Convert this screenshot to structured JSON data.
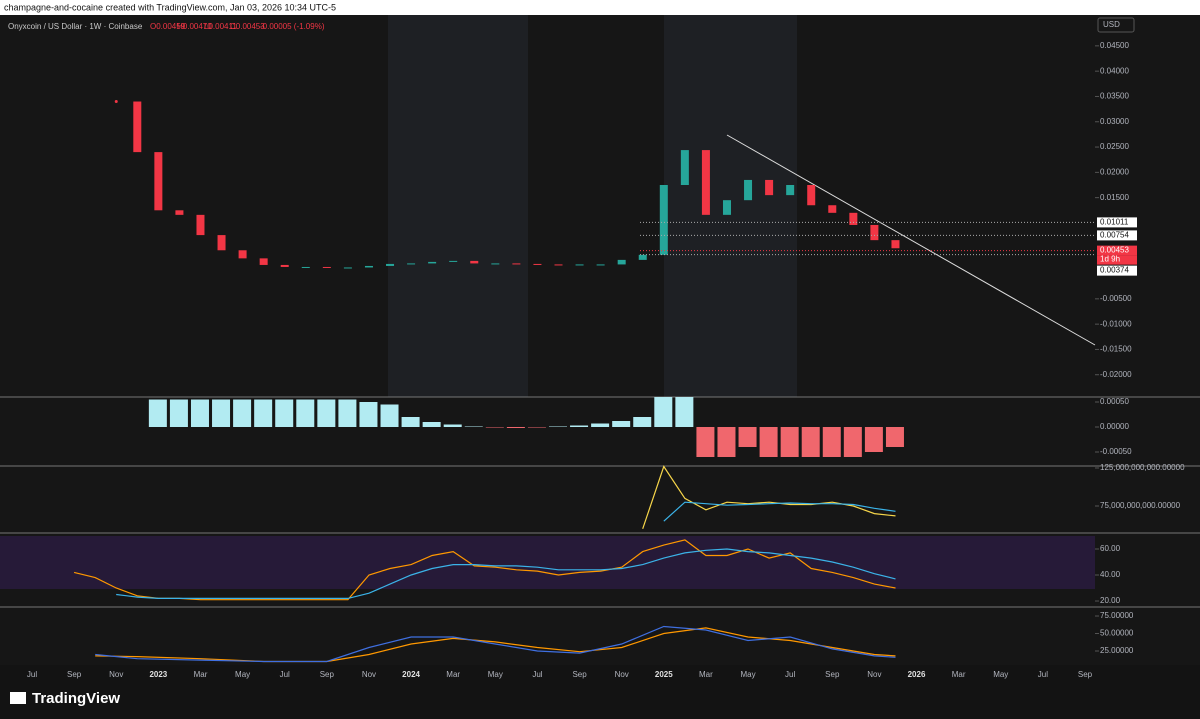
{
  "header": {
    "author_line": "champagne-and-cocaine created with TradingView.com, Jan 03, 2026 10:34 UTC-5",
    "symbol": "Onyxcoin / US Dollar · 1W · Coinbase",
    "open": "O0.00459",
    "high": "H0.00470",
    "low": "L0.00411",
    "close": "C0.00453",
    "change": "-0.00005 (-1.09%)",
    "currency": "USD"
  },
  "footer": {
    "brand": "TradingView"
  },
  "chart_data": [
    {
      "type": "line",
      "x": [
        "2022-11",
        "2022-12",
        "2023-01",
        "2023-02",
        "2023-03",
        "2023-04",
        "2023-05",
        "2023-06",
        "2023-07",
        "2023-08",
        "2023-09",
        "2023-10",
        "2023-11",
        "2023-12",
        "2024-01",
        "2024-02",
        "2024-03",
        "2024-04",
        "2024-05",
        "2024-06",
        "2024-07",
        "2024-08",
        "2024-09",
        "2024-10",
        "2024-11",
        "2024-12",
        "2025-01",
        "2025-02",
        "2025-03",
        "2025-04",
        "2025-05",
        "2025-06",
        "2025-07",
        "2025-08",
        "2025-09",
        "2025-10",
        "2025-11",
        "2025-12"
      ],
      "series": [
        {
          "up_color": "#26a69a",
          "down_color": "#f23645",
          "values": [
            0.034,
            0.024,
            0.0125,
            0.0116,
            0.0076,
            0.0046,
            0.003,
            0.0017,
            0.0013,
            0.0013,
            0.0012,
            0.0012,
            0.0015,
            0.0019,
            0.002,
            0.0023,
            0.0025,
            0.002,
            0.002,
            0.0019,
            0.0018,
            0.0017,
            0.0018,
            0.0018,
            0.0027,
            0.0037,
            0.0175,
            0.0244,
            0.0116,
            0.0145,
            0.0185,
            0.0155,
            0.0175,
            0.0135,
            0.012,
            0.0096,
            0.0066,
            0.005
          ]
        }
      ],
      "ylim": [
        -0.0244,
        0.0511
      ],
      "yticks": [
        {
          "value": 0.045,
          "label": "0.04500"
        },
        {
          "value": 0.04,
          "label": "0.04000"
        },
        {
          "value": 0.035,
          "label": "0.03500"
        },
        {
          "value": 0.03,
          "label": "0.03000"
        },
        {
          "value": 0.025,
          "label": "0.02500"
        },
        {
          "value": 0.02,
          "label": "0.02000"
        },
        {
          "value": 0.015,
          "label": "0.01500"
        },
        {
          "value": -0.005,
          "label": "-0.00500"
        },
        {
          "value": -0.01,
          "label": "-0.01000"
        },
        {
          "value": -0.015,
          "label": "-0.01500"
        },
        {
          "value": -0.02,
          "label": "-0.02000"
        }
      ],
      "price_labels": [
        {
          "value": 0.01011,
          "label": "0.01011",
          "color": "#ffffff"
        },
        {
          "value": 0.00754,
          "label": "0.00754",
          "color": "#ffffff"
        },
        {
          "value": 0.00453,
          "label": "0.00453",
          "color": "#f23645"
        },
        {
          "value": 0.00374,
          "label": "0.00374",
          "color": "#ffffff"
        }
      ],
      "countdown": "1d 9h",
      "xticks": [
        {
          "value": "2022-07",
          "label": "Jul"
        },
        {
          "value": "2022-09",
          "label": "Sep"
        },
        {
          "value": "2022-11",
          "label": "Nov"
        },
        {
          "value": "2023-01",
          "label": "2023"
        },
        {
          "value": "2023-03",
          "label": "Mar"
        },
        {
          "value": "2023-05",
          "label": "May"
        },
        {
          "value": "2023-07",
          "label": "Jul"
        },
        {
          "value": "2023-09",
          "label": "Sep"
        },
        {
          "value": "2023-11",
          "label": "Nov"
        },
        {
          "value": "2024-01",
          "label": "2024"
        },
        {
          "value": "2024-03",
          "label": "Mar"
        },
        {
          "value": "2024-05",
          "label": "May"
        },
        {
          "value": "2024-07",
          "label": "Jul"
        },
        {
          "value": "2024-09",
          "label": "Sep"
        },
        {
          "value": "2024-11",
          "label": "Nov"
        },
        {
          "value": "2025-01",
          "label": "2025"
        },
        {
          "value": "2025-03",
          "label": "Mar"
        },
        {
          "value": "2025-05",
          "label": "May"
        },
        {
          "value": "2025-07",
          "label": "Jul"
        },
        {
          "value": "2025-09",
          "label": "Sep"
        },
        {
          "value": "2025-11",
          "label": "Nov"
        },
        {
          "value": "2026-01",
          "label": "2026"
        },
        {
          "value": "2026-03",
          "label": "Mar"
        },
        {
          "value": "2026-05",
          "label": "May"
        },
        {
          "value": "2026-07",
          "label": "Jul"
        },
        {
          "value": "2026-09",
          "label": "Sep"
        }
      ]
    },
    {
      "type": "bar",
      "x": [
        "2023-01",
        "2023-02",
        "2023-03",
        "2023-04",
        "2023-05",
        "2023-06",
        "2023-07",
        "2023-08",
        "2023-09",
        "2023-10",
        "2023-11",
        "2023-12",
        "2024-01",
        "2024-02",
        "2024-03",
        "2024-04",
        "2024-05",
        "2024-06",
        "2024-07",
        "2024-08",
        "2024-09",
        "2024-10",
        "2024-11",
        "2024-12",
        "2025-01",
        "2025-02",
        "2025-03",
        "2025-04",
        "2025-05",
        "2025-06",
        "2025-07",
        "2025-08",
        "2025-09",
        "2025-10",
        "2025-11",
        "2025-12"
      ],
      "values": [
        0.00055,
        0.00055,
        0.00055,
        0.00055,
        0.00055,
        0.00055,
        0.00055,
        0.00055,
        0.00055,
        0.00055,
        0.0005,
        0.00045,
        0.0002,
        0.0001,
        5e-05,
        1e-05,
        -1e-05,
        -2e-05,
        -1e-05,
        1e-05,
        3e-05,
        7e-05,
        0.00012,
        0.0002,
        0.0006,
        0.0006,
        -0.0006,
        -0.0006,
        -0.0004,
        -0.0006,
        -0.0006,
        -0.0006,
        -0.0006,
        -0.0006,
        -0.0005,
        -0.0004
      ],
      "positive_color": "#b2ebf2",
      "negative_color": "#f0676d",
      "ylim": [
        -0.00078,
        0.0006
      ],
      "yticks": [
        {
          "value": 0.0005,
          "label": "0.00050"
        },
        {
          "value": 0,
          "label": "0.00000"
        },
        {
          "value": -0.0005,
          "label": "-0.00050"
        }
      ]
    },
    {
      "type": "line",
      "x": [
        "2024-12",
        "2025-01",
        "2025-02",
        "2025-03",
        "2025-04",
        "2025-05",
        "2025-06",
        "2025-07",
        "2025-08",
        "2025-09",
        "2025-10",
        "2025-11",
        "2025-12"
      ],
      "series": [
        {
          "color": "#f7d64a",
          "values": [
            45000000000,
            127000000000,
            85000000000,
            70000000000,
            80000000000,
            78000000000,
            80000000000,
            77000000000,
            77000000000,
            80000000000,
            75000000000,
            65000000000,
            62000000000
          ]
        },
        {
          "color": "#3bb3e8",
          "values": [
            null,
            55000000000,
            80000000000,
            78000000000,
            76000000000,
            77000000000,
            78000000000,
            79000000000,
            78000000000,
            78000000000,
            77000000000,
            72000000000,
            68000000000
          ]
        }
      ],
      "ylim": [
        39500000000,
        127600000000
      ],
      "yticks": [
        {
          "value": 125000000000,
          "label": "125,000,000,000.00000"
        },
        {
          "value": 75000000000,
          "label": "75,000,000,000.00000"
        }
      ]
    },
    {
      "type": "line",
      "x": [
        "2022-09",
        "2022-10",
        "2022-11",
        "2022-12",
        "2023-01",
        "2023-02",
        "2023-03",
        "2023-04",
        "2023-05",
        "2023-06",
        "2023-07",
        "2023-08",
        "2023-09",
        "2023-10",
        "2023-11",
        "2023-12",
        "2024-01",
        "2024-02",
        "2024-03",
        "2024-04",
        "2024-05",
        "2024-06",
        "2024-07",
        "2024-08",
        "2024-09",
        "2024-10",
        "2024-11",
        "2024-12",
        "2025-01",
        "2025-02",
        "2025-03",
        "2025-04",
        "2025-05",
        "2025-06",
        "2025-07",
        "2025-08",
        "2025-09",
        "2025-10",
        "2025-11",
        "2025-12"
      ],
      "series": [
        {
          "color": "#ff9800",
          "values": [
            42,
            38,
            30,
            24,
            22,
            22,
            21,
            21,
            21,
            21,
            21,
            21,
            21,
            21,
            40,
            45,
            48,
            55,
            58,
            47,
            46,
            44,
            43,
            40,
            42,
            43,
            46,
            58,
            63,
            67,
            55,
            55,
            60,
            53,
            57,
            45,
            42,
            38,
            33,
            30
          ]
        },
        {
          "color": "#3bb3e8",
          "values": [
            null,
            null,
            25,
            23,
            22,
            22,
            22,
            22,
            22,
            22,
            22,
            22,
            22,
            22,
            26,
            33,
            40,
            45,
            48,
            48,
            47,
            47,
            46,
            44,
            44,
            44,
            45,
            48,
            53,
            57,
            59,
            60,
            58,
            57,
            55,
            53,
            50,
            46,
            41,
            37
          ]
        }
      ],
      "ylim": [
        15.4,
        72.3
      ],
      "yticks": [
        {
          "value": 60,
          "label": "60.00"
        },
        {
          "value": 40,
          "label": "40.00"
        },
        {
          "value": 20,
          "label": "20.00"
        }
      ]
    },
    {
      "type": "line",
      "x": [
        "2022-10",
        "2022-12",
        "2023-03",
        "2023-06",
        "2023-09",
        "2023-11",
        "2024-01",
        "2024-03",
        "2024-05",
        "2024-07",
        "2024-09",
        "2024-11",
        "2025-01",
        "2025-03",
        "2025-05",
        "2025-07",
        "2025-09",
        "2025-11",
        "2025-12"
      ],
      "series": [
        {
          "color": "#ff9800",
          "values": [
            18,
            17,
            14,
            10,
            10,
            20,
            35,
            43,
            38,
            30,
            24,
            30,
            50,
            58,
            45,
            40,
            30,
            20,
            18
          ]
        },
        {
          "color": "#3f6fe0",
          "values": [
            20,
            14,
            12,
            10,
            10,
            30,
            45,
            45,
            35,
            25,
            22,
            35,
            60,
            55,
            40,
            45,
            28,
            18,
            16
          ]
        }
      ],
      "ylim": [
        5,
        87.9
      ],
      "yticks": [
        {
          "value": 75,
          "label": "75.00000"
        },
        {
          "value": 50,
          "label": "50.00000"
        },
        {
          "value": 25,
          "label": "25.00000"
        }
      ]
    }
  ]
}
